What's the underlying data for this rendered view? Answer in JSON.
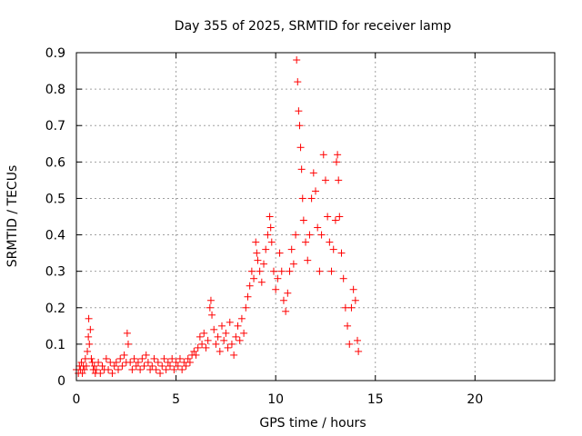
{
  "chart_data": {
    "type": "scatter",
    "title": "Day 355 of 2025, SRMTID for receiver lamp",
    "xlabel": "GPS time / hours",
    "ylabel": "SRMTID / TECUs",
    "xlim": [
      0,
      24
    ],
    "ylim": [
      0,
      0.9
    ],
    "xticks": [
      0,
      5,
      10,
      15,
      20
    ],
    "xtick_labels": [
      "0",
      "5",
      "10",
      "15",
      "20"
    ],
    "yticks": [
      0,
      0.1,
      0.2,
      0.3,
      0.4,
      0.5,
      0.6,
      0.7,
      0.8,
      0.9
    ],
    "ytick_labels": [
      "0",
      "0.1",
      "0.2",
      "0.3",
      "0.4",
      "0.5",
      "0.6",
      "0.7",
      "0.8",
      "0.9"
    ],
    "grid": true,
    "marker": "+",
    "color": "#ff0000",
    "series": [
      {
        "name": "SRMTID",
        "points": [
          [
            0.0,
            0.03
          ],
          [
            0.1,
            0.02
          ],
          [
            0.15,
            0.04
          ],
          [
            0.2,
            0.03
          ],
          [
            0.25,
            0.05
          ],
          [
            0.3,
            0.02
          ],
          [
            0.35,
            0.04
          ],
          [
            0.4,
            0.03
          ],
          [
            0.45,
            0.06
          ],
          [
            0.5,
            0.04
          ],
          [
            0.55,
            0.08
          ],
          [
            0.6,
            0.12
          ],
          [
            0.62,
            0.17
          ],
          [
            0.65,
            0.1
          ],
          [
            0.7,
            0.14
          ],
          [
            0.75,
            0.06
          ],
          [
            0.8,
            0.05
          ],
          [
            0.85,
            0.03
          ],
          [
            0.9,
            0.04
          ],
          [
            0.95,
            0.02
          ],
          [
            1.0,
            0.03
          ],
          [
            1.1,
            0.05
          ],
          [
            1.2,
            0.02
          ],
          [
            1.3,
            0.04
          ],
          [
            1.4,
            0.03
          ],
          [
            1.5,
            0.06
          ],
          [
            1.6,
            0.03
          ],
          [
            1.7,
            0.05
          ],
          [
            1.8,
            0.02
          ],
          [
            1.9,
            0.04
          ],
          [
            2.0,
            0.05
          ],
          [
            2.1,
            0.03
          ],
          [
            2.2,
            0.06
          ],
          [
            2.3,
            0.04
          ],
          [
            2.4,
            0.07
          ],
          [
            2.5,
            0.05
          ],
          [
            2.55,
            0.13
          ],
          [
            2.6,
            0.1
          ],
          [
            2.7,
            0.05
          ],
          [
            2.8,
            0.03
          ],
          [
            2.9,
            0.06
          ],
          [
            3.0,
            0.04
          ],
          [
            3.1,
            0.05
          ],
          [
            3.2,
            0.03
          ],
          [
            3.3,
            0.06
          ],
          [
            3.4,
            0.04
          ],
          [
            3.5,
            0.07
          ],
          [
            3.6,
            0.05
          ],
          [
            3.7,
            0.03
          ],
          [
            3.8,
            0.04
          ],
          [
            3.9,
            0.06
          ],
          [
            4.0,
            0.03
          ],
          [
            4.1,
            0.05
          ],
          [
            4.2,
            0.02
          ],
          [
            4.3,
            0.04
          ],
          [
            4.4,
            0.06
          ],
          [
            4.5,
            0.03
          ],
          [
            4.6,
            0.05
          ],
          [
            4.7,
            0.04
          ],
          [
            4.8,
            0.06
          ],
          [
            4.9,
            0.03
          ],
          [
            5.0,
            0.05
          ],
          [
            5.1,
            0.04
          ],
          [
            5.2,
            0.06
          ],
          [
            5.3,
            0.03
          ],
          [
            5.4,
            0.05
          ],
          [
            5.5,
            0.04
          ],
          [
            5.6,
            0.06
          ],
          [
            5.7,
            0.05
          ],
          [
            5.8,
            0.07
          ],
          [
            5.9,
            0.08
          ],
          [
            6.0,
            0.07
          ],
          [
            6.1,
            0.09
          ],
          [
            6.2,
            0.12
          ],
          [
            6.3,
            0.1
          ],
          [
            6.4,
            0.13
          ],
          [
            6.5,
            0.09
          ],
          [
            6.6,
            0.11
          ],
          [
            6.7,
            0.2
          ],
          [
            6.75,
            0.22
          ],
          [
            6.8,
            0.18
          ],
          [
            6.9,
            0.14
          ],
          [
            7.0,
            0.1
          ],
          [
            7.1,
            0.12
          ],
          [
            7.2,
            0.08
          ],
          [
            7.3,
            0.15
          ],
          [
            7.4,
            0.11
          ],
          [
            7.5,
            0.13
          ],
          [
            7.6,
            0.09
          ],
          [
            7.7,
            0.16
          ],
          [
            7.8,
            0.1
          ],
          [
            7.9,
            0.07
          ],
          [
            8.0,
            0.12
          ],
          [
            8.1,
            0.15
          ],
          [
            8.2,
            0.11
          ],
          [
            8.3,
            0.17
          ],
          [
            8.4,
            0.13
          ],
          [
            8.5,
            0.2
          ],
          [
            8.6,
            0.23
          ],
          [
            8.7,
            0.26
          ],
          [
            8.8,
            0.3
          ],
          [
            8.9,
            0.28
          ],
          [
            9.0,
            0.38
          ],
          [
            9.05,
            0.35
          ],
          [
            9.1,
            0.33
          ],
          [
            9.2,
            0.3
          ],
          [
            9.3,
            0.27
          ],
          [
            9.4,
            0.32
          ],
          [
            9.5,
            0.36
          ],
          [
            9.6,
            0.4
          ],
          [
            9.7,
            0.45
          ],
          [
            9.75,
            0.42
          ],
          [
            9.8,
            0.38
          ],
          [
            9.9,
            0.3
          ],
          [
            10.0,
            0.25
          ],
          [
            10.1,
            0.28
          ],
          [
            10.2,
            0.35
          ],
          [
            10.3,
            0.3
          ],
          [
            10.4,
            0.22
          ],
          [
            10.5,
            0.19
          ],
          [
            10.6,
            0.24
          ],
          [
            10.7,
            0.3
          ],
          [
            10.8,
            0.36
          ],
          [
            10.9,
            0.32
          ],
          [
            11.0,
            0.4
          ],
          [
            11.05,
            0.88
          ],
          [
            11.1,
            0.82
          ],
          [
            11.15,
            0.74
          ],
          [
            11.2,
            0.7
          ],
          [
            11.25,
            0.64
          ],
          [
            11.3,
            0.58
          ],
          [
            11.35,
            0.5
          ],
          [
            11.4,
            0.44
          ],
          [
            11.5,
            0.38
          ],
          [
            11.6,
            0.33
          ],
          [
            11.7,
            0.4
          ],
          [
            11.8,
            0.5
          ],
          [
            11.9,
            0.57
          ],
          [
            12.0,
            0.52
          ],
          [
            12.1,
            0.42
          ],
          [
            12.2,
            0.3
          ],
          [
            12.3,
            0.4
          ],
          [
            12.4,
            0.62
          ],
          [
            12.5,
            0.55
          ],
          [
            12.6,
            0.45
          ],
          [
            12.7,
            0.38
          ],
          [
            12.8,
            0.3
          ],
          [
            12.9,
            0.36
          ],
          [
            13.0,
            0.44
          ],
          [
            13.05,
            0.6
          ],
          [
            13.1,
            0.62
          ],
          [
            13.15,
            0.55
          ],
          [
            13.2,
            0.45
          ],
          [
            13.3,
            0.35
          ],
          [
            13.4,
            0.28
          ],
          [
            13.5,
            0.2
          ],
          [
            13.6,
            0.15
          ],
          [
            13.7,
            0.1
          ],
          [
            13.8,
            0.2
          ],
          [
            13.9,
            0.25
          ],
          [
            14.0,
            0.22
          ],
          [
            14.1,
            0.11
          ],
          [
            14.15,
            0.08
          ]
        ]
      }
    ]
  }
}
